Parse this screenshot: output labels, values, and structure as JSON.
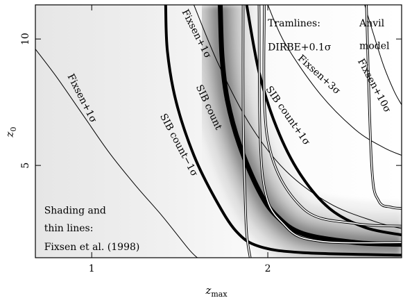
{
  "chart_data": {
    "type": "line",
    "title": "",
    "xlabel": "z",
    "xlabel_sub": "max",
    "ylabel": "z",
    "ylabel_sub": "0",
    "xlim": [
      0.68,
      2.76
    ],
    "ylim": [
      1.35,
      11.35
    ],
    "xticks": [
      1,
      2
    ],
    "yticks": [
      5,
      10
    ],
    "background": "grayscale likelihood shading (Fixsen et al. 1998), darkest band along SIB count curve",
    "series": [
      {
        "name": "Fixsen+1σ (left)",
        "style": "thin",
        "points": [
          [
            0.68,
            9.6
          ],
          [
            0.8,
            8.5
          ],
          [
            0.95,
            7.0
          ],
          [
            1.1,
            5.5
          ],
          [
            1.25,
            4.2
          ],
          [
            1.4,
            3.0
          ],
          [
            1.55,
            1.7
          ],
          [
            1.6,
            1.35
          ]
        ]
      },
      {
        "name": "SIB count-1σ",
        "style": "thick",
        "points": [
          [
            1.42,
            11.35
          ],
          [
            1.43,
            9.5
          ],
          [
            1.48,
            7.5
          ],
          [
            1.58,
            5.4
          ],
          [
            1.7,
            3.7
          ],
          [
            1.82,
            2.4
          ],
          [
            1.95,
            1.8
          ],
          [
            2.2,
            1.55
          ],
          [
            2.76,
            1.45
          ]
        ]
      },
      {
        "name": "SIB count",
        "style": "extra-thick",
        "points": [
          [
            1.73,
            11.35
          ],
          [
            1.74,
            9.3
          ],
          [
            1.77,
            7.6
          ],
          [
            1.84,
            5.8
          ],
          [
            1.95,
            4.0
          ],
          [
            2.05,
            3.0
          ],
          [
            2.2,
            2.3
          ],
          [
            2.5,
            1.95
          ],
          [
            2.76,
            1.88
          ]
        ]
      },
      {
        "name": "SIB count+1σ",
        "style": "thick",
        "points": [
          [
            1.88,
            11.35
          ],
          [
            1.95,
            8.7
          ],
          [
            2.05,
            6.5
          ],
          [
            2.18,
            4.7
          ],
          [
            2.35,
            3.3
          ],
          [
            2.55,
            2.55
          ],
          [
            2.76,
            2.25
          ]
        ]
      },
      {
        "name": "Fixsen+1σ (right)",
        "style": "thin",
        "points": [
          [
            1.58,
            11.35
          ],
          [
            1.72,
            9.0
          ],
          [
            1.9,
            6.6
          ],
          [
            2.1,
            4.8
          ],
          [
            2.35,
            3.5
          ],
          [
            2.6,
            2.8
          ],
          [
            2.76,
            2.5
          ]
        ]
      },
      {
        "name": "Fixsen+3σ",
        "style": "thin",
        "points": [
          [
            2.0,
            11.35
          ],
          [
            2.1,
            9.8
          ],
          [
            2.3,
            7.8
          ],
          [
            2.5,
            6.4
          ],
          [
            2.66,
            5.7
          ],
          [
            2.76,
            5.4
          ]
        ]
      },
      {
        "name": "Fixsen+10σ",
        "style": "thin",
        "points": [
          [
            2.55,
            11.35
          ],
          [
            2.6,
            10.2
          ],
          [
            2.66,
            8.9
          ],
          [
            2.72,
            7.9
          ],
          [
            2.76,
            7.4
          ]
        ]
      },
      {
        "name": "Tramline 1",
        "style": "double-thin",
        "points": [
          [
            1.86,
            11.35
          ],
          [
            1.86,
            7.0
          ],
          [
            1.87,
            4.0
          ],
          [
            1.88,
            2.3
          ],
          [
            1.9,
            1.35
          ]
        ]
      },
      {
        "name": "Tramline 2",
        "style": "double-thin",
        "points": [
          [
            1.95,
            11.35
          ],
          [
            1.97,
            4.6
          ],
          [
            2.1,
            2.6
          ],
          [
            2.3,
            2.0
          ],
          [
            2.76,
            1.95
          ]
        ]
      },
      {
        "name": "Tramline 3",
        "style": "double-thin",
        "points": [
          [
            1.98,
            11.35
          ],
          [
            2.0,
            6.0
          ],
          [
            2.2,
            3.3
          ],
          [
            2.5,
            2.7
          ],
          [
            2.76,
            2.6
          ]
        ]
      },
      {
        "name": "Tramline 4",
        "style": "double-thin",
        "points": [
          [
            2.56,
            11.35
          ],
          [
            2.59,
            5.0
          ],
          [
            2.63,
            3.6
          ],
          [
            2.7,
            3.35
          ],
          [
            2.76,
            3.3
          ]
        ]
      }
    ],
    "annotations": [
      {
        "text": "Fixsen+1σ",
        "x": 0.93,
        "y": 7.6,
        "angle": 63
      },
      {
        "text": "Fixsen+1σ",
        "x": 1.58,
        "y": 10.15,
        "angle": 63
      },
      {
        "text": "SIB count",
        "x": 1.65,
        "y": 7.25,
        "angle": 65
      },
      {
        "text": "SIB count−1σ",
        "x": 1.48,
        "y": 5.75,
        "angle": 62
      },
      {
        "text": "SIB count+1σ",
        "x": 2.1,
        "y": 6.9,
        "angle": 55
      },
      {
        "text": "Fixsen+3σ",
        "x": 2.28,
        "y": 8.5,
        "angle": 42
      },
      {
        "text": "Fixsen+10σ",
        "x": 2.59,
        "y": 8.1,
        "angle": 62
      },
      {
        "text": "Tramlines:",
        "x": 2.0,
        "y": 10.5,
        "angle": 0
      },
      {
        "text": "DIRBE+0.1σ",
        "x": 2.0,
        "y": 9.55,
        "angle": 0
      },
      {
        "text": "Anvil",
        "x": 2.52,
        "y": 10.5,
        "angle": 0
      },
      {
        "text": "model",
        "x": 2.52,
        "y": 9.6,
        "angle": 0
      },
      {
        "text": "Shading and",
        "x": 0.73,
        "y": 3.1,
        "angle": 0
      },
      {
        "text": "thin lines:",
        "x": 0.73,
        "y": 2.4,
        "angle": 0
      },
      {
        "text": "Fixsen et al. (1998)",
        "x": 0.73,
        "y": 1.65,
        "angle": 0
      }
    ]
  }
}
